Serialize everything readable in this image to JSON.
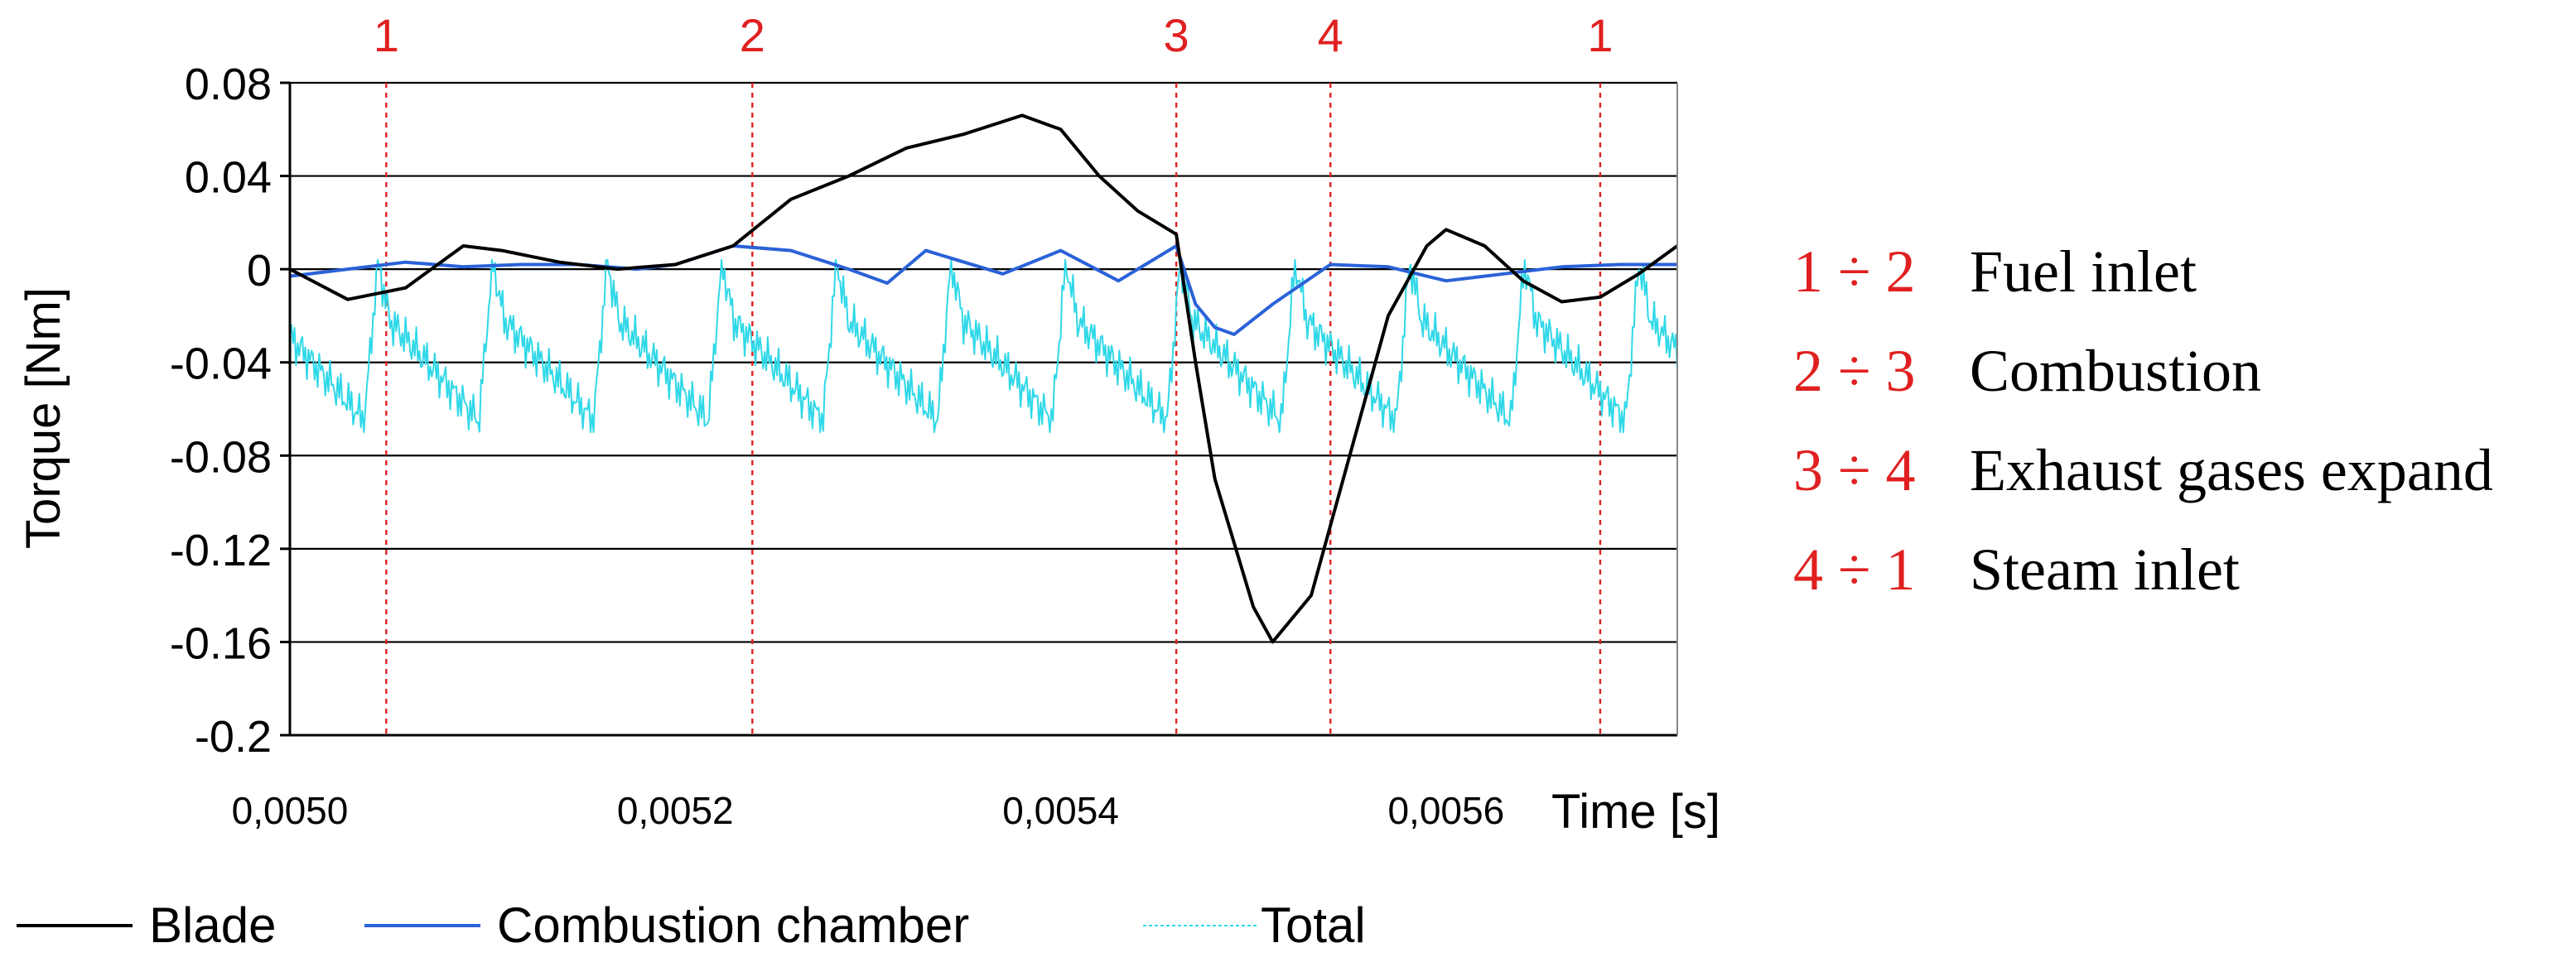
{
  "chart_data": {
    "type": "line",
    "title": "",
    "xlabel": "Time [s]",
    "ylabel": "Torque [Nm]",
    "xlim": [
      0.005,
      0.00572
    ],
    "ylim": [
      -0.2,
      0.08
    ],
    "grid": true,
    "legend_placement": "bottom",
    "x_ticks": [
      "0,0050",
      "0,0052",
      "0,0054",
      "0,0056"
    ],
    "x_tick_values": [
      0.005,
      0.0052,
      0.0054,
      0.0056
    ],
    "y_ticks": [
      "0.08",
      "0.04",
      "0",
      "-0.04",
      "-0.08",
      "-0.12",
      "-0.16",
      "-0.2"
    ],
    "y_tick_values": [
      0.08,
      0.04,
      0,
      -0.04,
      -0.08,
      -0.12,
      -0.16,
      -0.2
    ],
    "markers": [
      {
        "label": "1",
        "x": 0.00505
      },
      {
        "label": "2",
        "x": 0.00524
      },
      {
        "label": "3",
        "x": 0.00546
      },
      {
        "label": "4",
        "x": 0.00554
      },
      {
        "label": "1",
        "x": 0.00568
      }
    ],
    "series": [
      {
        "name": "Blade",
        "color": "#000000",
        "x": [
          0.005,
          0.00503,
          0.00506,
          0.00509,
          0.00511,
          0.00514,
          0.00517,
          0.0052,
          0.00523,
          0.00526,
          0.00529,
          0.00532,
          0.00535,
          0.00538,
          0.0054,
          0.00542,
          0.00544,
          0.00546,
          0.00547,
          0.00548,
          0.0055,
          0.00551,
          0.00553,
          0.00555,
          0.00557,
          0.00559,
          0.0056,
          0.00562,
          0.00564,
          0.00566,
          0.00568,
          0.0057,
          0.00572
        ],
        "values": [
          0.0,
          -0.013,
          -0.008,
          0.01,
          0.008,
          0.003,
          0.0,
          0.002,
          0.01,
          0.03,
          0.04,
          0.052,
          0.058,
          0.066,
          0.06,
          0.04,
          0.025,
          0.015,
          -0.04,
          -0.09,
          -0.145,
          -0.16,
          -0.14,
          -0.08,
          -0.02,
          0.01,
          0.017,
          0.01,
          -0.005,
          -0.014,
          -0.012,
          -0.002,
          0.01
        ]
      },
      {
        "name": "Combustion chamber",
        "color": "#2a62d8",
        "x": [
          0.005,
          0.00503,
          0.00506,
          0.00509,
          0.00512,
          0.00515,
          0.00518,
          0.0052,
          0.00523,
          0.00526,
          0.00529,
          0.00531,
          0.00533,
          0.00535,
          0.00537,
          0.0054,
          0.00543,
          0.00546,
          0.00547,
          0.00548,
          0.00549,
          0.00551,
          0.00554,
          0.00557,
          0.0056,
          0.00563,
          0.00566,
          0.00569,
          0.00572
        ],
        "values": [
          -0.003,
          0.0,
          0.003,
          0.001,
          0.002,
          0.002,
          0.0,
          0.002,
          0.01,
          0.008,
          0.0,
          -0.006,
          0.008,
          0.003,
          -0.002,
          0.008,
          -0.005,
          0.01,
          -0.015,
          -0.025,
          -0.028,
          -0.015,
          0.002,
          0.001,
          -0.005,
          -0.002,
          0.001,
          0.002,
          0.002
        ]
      },
      {
        "name": "Total",
        "color": "#30d8e8",
        "x": [],
        "values": []
      }
    ]
  },
  "phases": [
    {
      "range": "1 ÷ 2",
      "label": "Fuel inlet"
    },
    {
      "range": "2 ÷ 3",
      "label": "Combustion"
    },
    {
      "range": "3 ÷ 4",
      "label": "Exhaust gases expand"
    },
    {
      "range": "4 ÷ 1",
      "label": "Steam inlet"
    }
  ]
}
